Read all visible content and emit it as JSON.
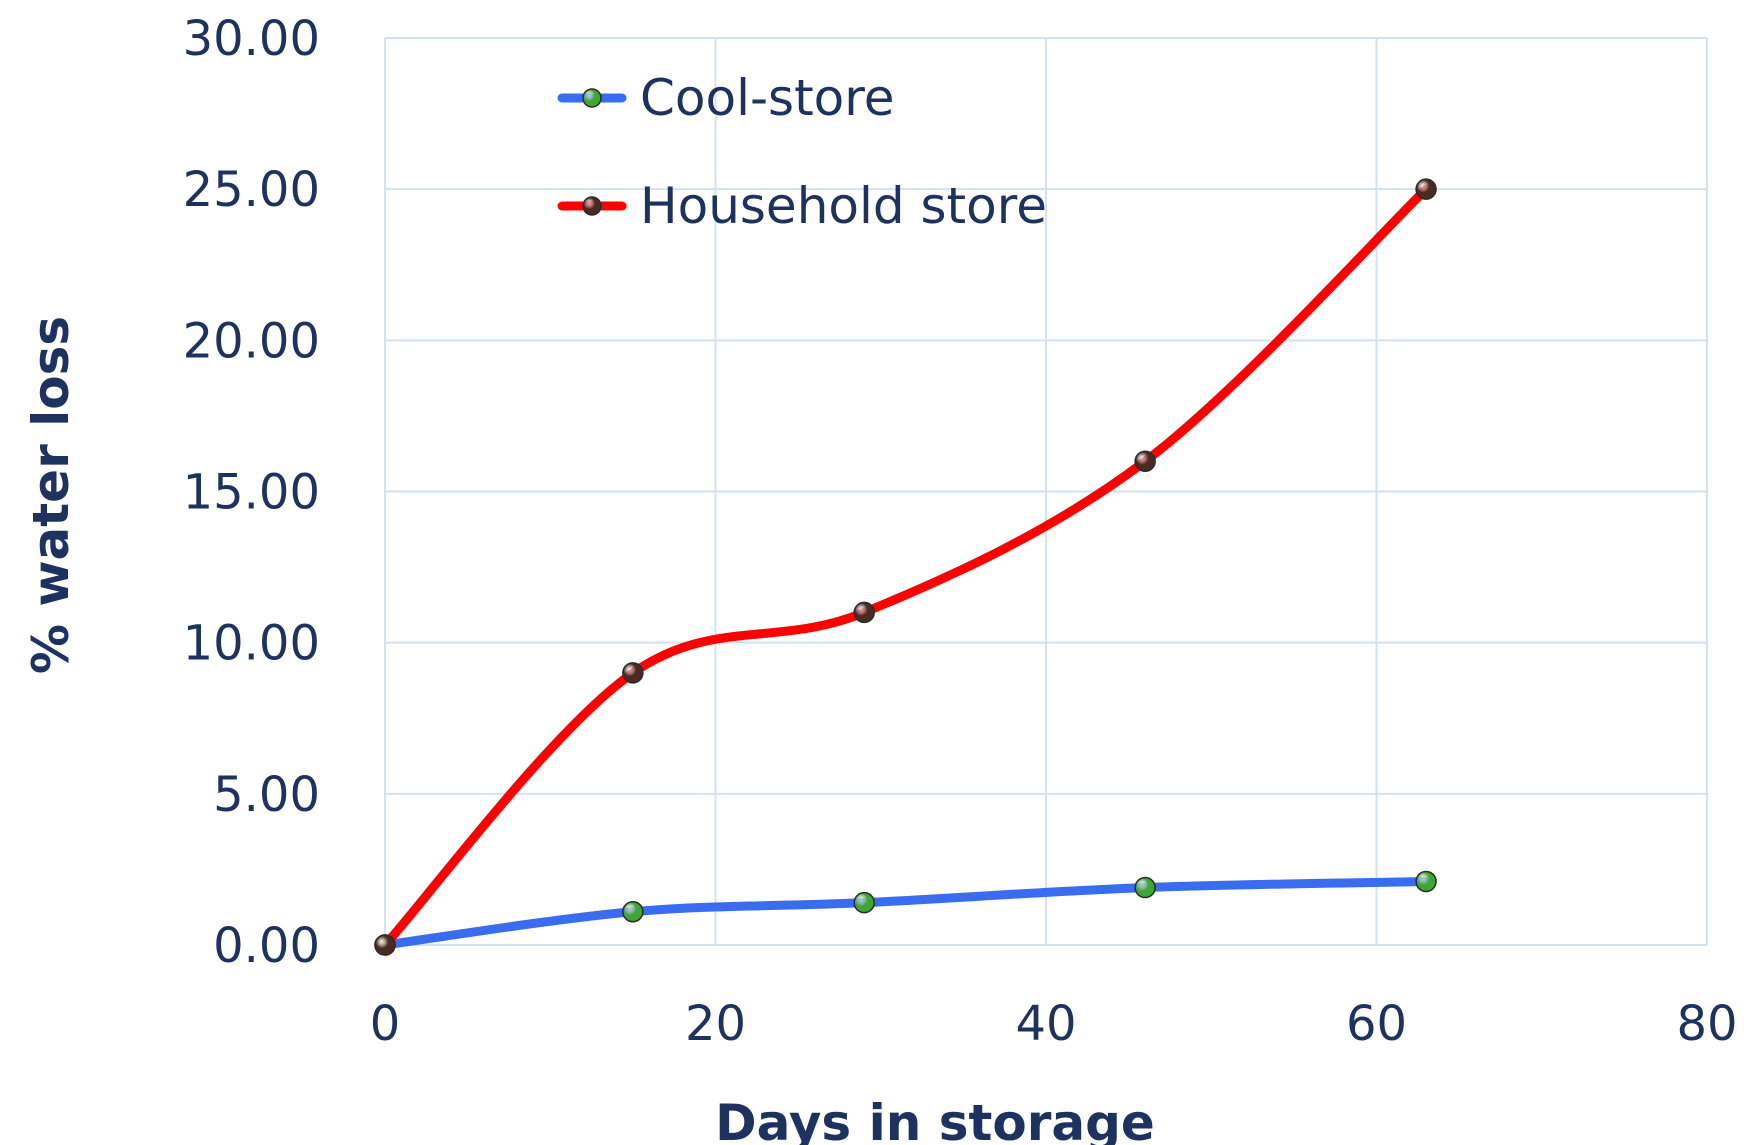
{
  "chart_data": {
    "type": "line",
    "title": "",
    "xlabel": "Days in storage",
    "ylabel": "% water loss",
    "xlim": [
      0,
      80
    ],
    "ylim": [
      0,
      30
    ],
    "x_ticks": [
      "0",
      "20",
      "40",
      "60",
      "80"
    ],
    "y_ticks": [
      "0.00",
      "5.00",
      "10.00",
      "15.00",
      "20.00",
      "25.00",
      "30.00"
    ],
    "grid": true,
    "legend_position": "top-left",
    "series": [
      {
        "name": "Cool-store",
        "color": "#3a6cf0",
        "marker_color": "#3fa534",
        "x": [
          0,
          15,
          29,
          46,
          63
        ],
        "y": [
          0.0,
          1.1,
          1.4,
          1.9,
          2.1
        ]
      },
      {
        "name": "Household store",
        "color": "#ff0000",
        "marker_color": "#4a2a22",
        "x": [
          0,
          15,
          29,
          46,
          63
        ],
        "y": [
          0.0,
          9.0,
          11.0,
          16.0,
          25.0
        ]
      }
    ]
  }
}
